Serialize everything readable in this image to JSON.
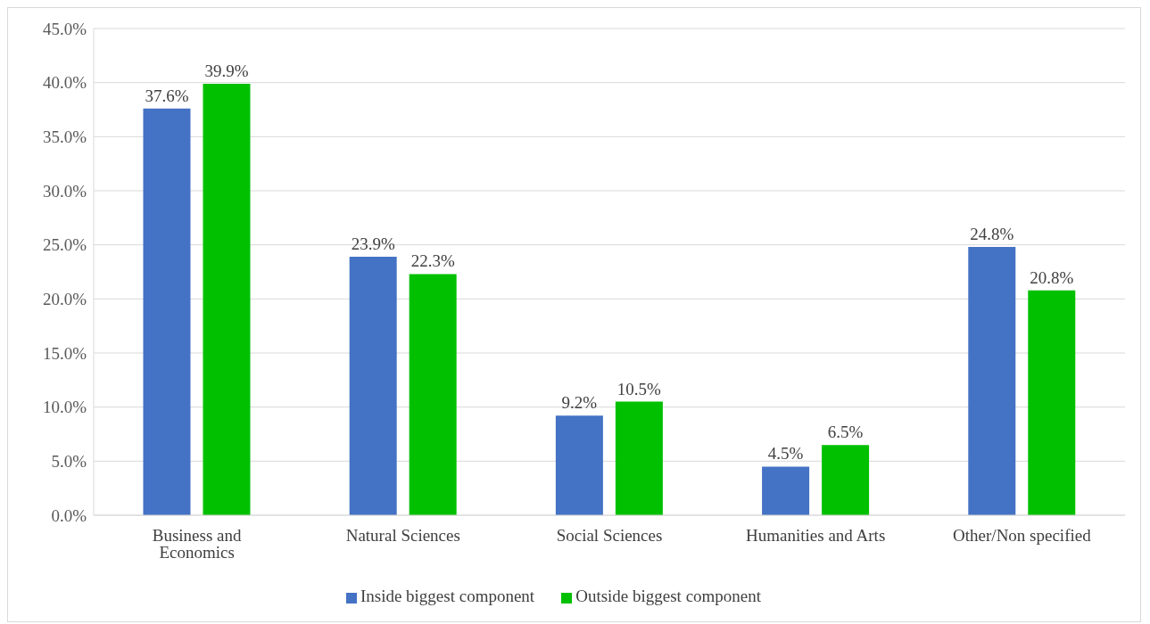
{
  "chart_data": {
    "type": "bar",
    "categories": [
      "Business and Economics",
      "Natural Sciences",
      "Social Sciences",
      "Humanities and Arts",
      "Other/Non specified"
    ],
    "series": [
      {
        "name": "Inside biggest component",
        "color": "#4472c4",
        "values": [
          37.6,
          23.9,
          9.2,
          4.5,
          24.8
        ],
        "value_labels": [
          "37.6%",
          "23.9%",
          "9.2%",
          "4.5%",
          "24.8%"
        ]
      },
      {
        "name": "Outside biggest component",
        "color": "#00c000",
        "values": [
          39.9,
          22.3,
          10.5,
          6.5,
          20.8
        ],
        "value_labels": [
          "39.9%",
          "22.3%",
          "10.5%",
          "6.5%",
          "20.8%"
        ]
      }
    ],
    "ylim": [
      0,
      45
    ],
    "yticks": [
      {
        "value": 0,
        "label": "0.0%"
      },
      {
        "value": 5,
        "label": "5.0%"
      },
      {
        "value": 10,
        "label": "10.0%"
      },
      {
        "value": 15,
        "label": "15.0%"
      },
      {
        "value": 20,
        "label": "20.0%"
      },
      {
        "value": 25,
        "label": "25.0%"
      },
      {
        "value": 30,
        "label": "30.0%"
      },
      {
        "value": 35,
        "label": "35.0%"
      },
      {
        "value": 40,
        "label": "40.0%"
      },
      {
        "value": 45,
        "label": "45.0%"
      }
    ],
    "grid": "y",
    "legend": "bottom"
  }
}
